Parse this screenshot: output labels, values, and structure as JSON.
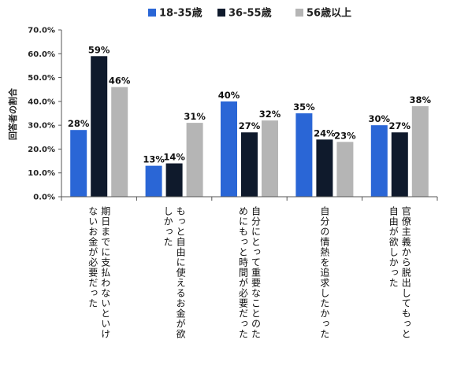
{
  "chart_data": {
    "type": "bar",
    "ylabel": "回答者の割合",
    "ylim": [
      0,
      70
    ],
    "ytick_labels": [
      "0.0%",
      "10.0%",
      "20.0%",
      "30.0%",
      "40.0%",
      "50.0%",
      "60.0%",
      "70.0%"
    ],
    "grid": false,
    "legend_position": "top",
    "categories": [
      [
        "期日までに支払わないといけ",
        "ないお金が必要だった"
      ],
      [
        "もっと自由に使えるお金が欲",
        "しかった"
      ],
      [
        "自分にとって重要なことのた",
        "めにもっと時間が必要だった"
      ],
      [
        "自分の情熱を追求したかった"
      ],
      [
        "官僚主義から脱出してもっと",
        "自由が欲しかった"
      ]
    ],
    "series": [
      {
        "name": "18-35歳",
        "color": "#2a66d6",
        "values": [
          28,
          13,
          40,
          35,
          30
        ],
        "labels": [
          "28%",
          "13%",
          "40%",
          "35%",
          "30%"
        ]
      },
      {
        "name": "36-55歳",
        "color": "#0f1a2c",
        "values": [
          59,
          14,
          27,
          24,
          27
        ],
        "labels": [
          "59%",
          "14%",
          "27%",
          "24%",
          "27%"
        ]
      },
      {
        "name": "56歳以上",
        "color": "#b5b5b5",
        "values": [
          46,
          31,
          32,
          23,
          38
        ],
        "labels": [
          "46%",
          "31%",
          "32%",
          "23%",
          "38%"
        ]
      }
    ]
  }
}
